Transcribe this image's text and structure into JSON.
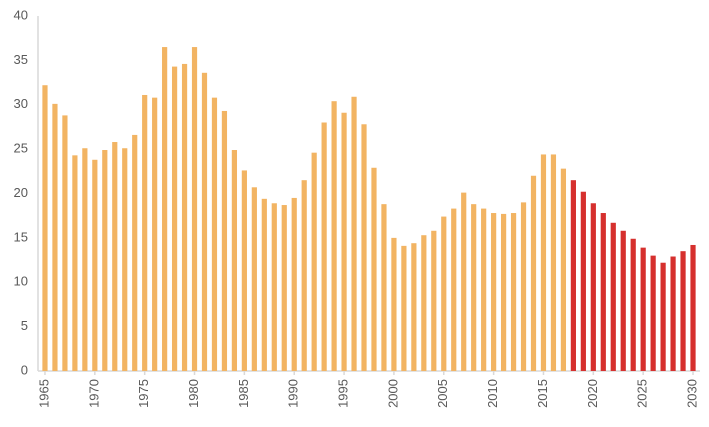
{
  "chart_data": {
    "type": "bar",
    "xlim": [
      1964.3,
      2030.7
    ],
    "xticks": [
      1965,
      1970,
      1975,
      1980,
      1985,
      1990,
      1995,
      2000,
      2005,
      2010,
      2015,
      2020,
      2025,
      2030
    ],
    "ylim": [
      0,
      40
    ],
    "yticks": [
      0,
      5,
      10,
      15,
      20,
      25,
      30,
      35,
      40
    ],
    "grid": false,
    "series": [
      {
        "color": "#f2b463",
        "x": [
          1965,
          1966,
          1967,
          1968,
          1969,
          1970,
          1971,
          1972,
          1973,
          1974,
          1975,
          1976,
          1977,
          1978,
          1979,
          1980,
          1981,
          1982,
          1983,
          1984,
          1985,
          1986,
          1987,
          1988,
          1989,
          1990,
          1991,
          1992,
          1993,
          1994,
          1995,
          1996,
          1997,
          1998,
          1999,
          2000,
          2001,
          2002,
          2003,
          2004,
          2005,
          2006,
          2007,
          2008,
          2009,
          2010,
          2011,
          2012,
          2013,
          2014,
          2015,
          2016,
          2017
        ],
        "values": [
          32.2,
          30.1,
          28.8,
          24.3,
          25.1,
          23.8,
          24.9,
          25.8,
          25.1,
          26.6,
          31.1,
          30.8,
          36.5,
          34.3,
          34.6,
          36.5,
          33.6,
          30.8,
          29.3,
          24.9,
          22.6,
          20.7,
          19.4,
          18.9,
          18.7,
          19.5,
          21.5,
          24.6,
          28.0,
          30.4,
          29.1,
          30.9,
          27.8,
          22.9,
          18.8,
          15.0,
          14.1,
          14.4,
          15.3,
          15.8,
          17.4,
          18.3,
          20.1,
          18.8,
          18.3,
          17.8,
          17.7,
          17.8,
          19.0,
          22.0,
          24.4,
          24.4,
          22.8
        ]
      },
      {
        "color": "#d6302e",
        "x": [
          2018,
          2019,
          2020,
          2021,
          2022,
          2023,
          2024,
          2025,
          2026,
          2027,
          2028,
          2029,
          2030
        ],
        "values": [
          21.5,
          20.2,
          18.9,
          17.8,
          16.7,
          15.8,
          14.9,
          13.9,
          13.0,
          12.2,
          12.9,
          13.5,
          14.2
        ]
      }
    ]
  }
}
